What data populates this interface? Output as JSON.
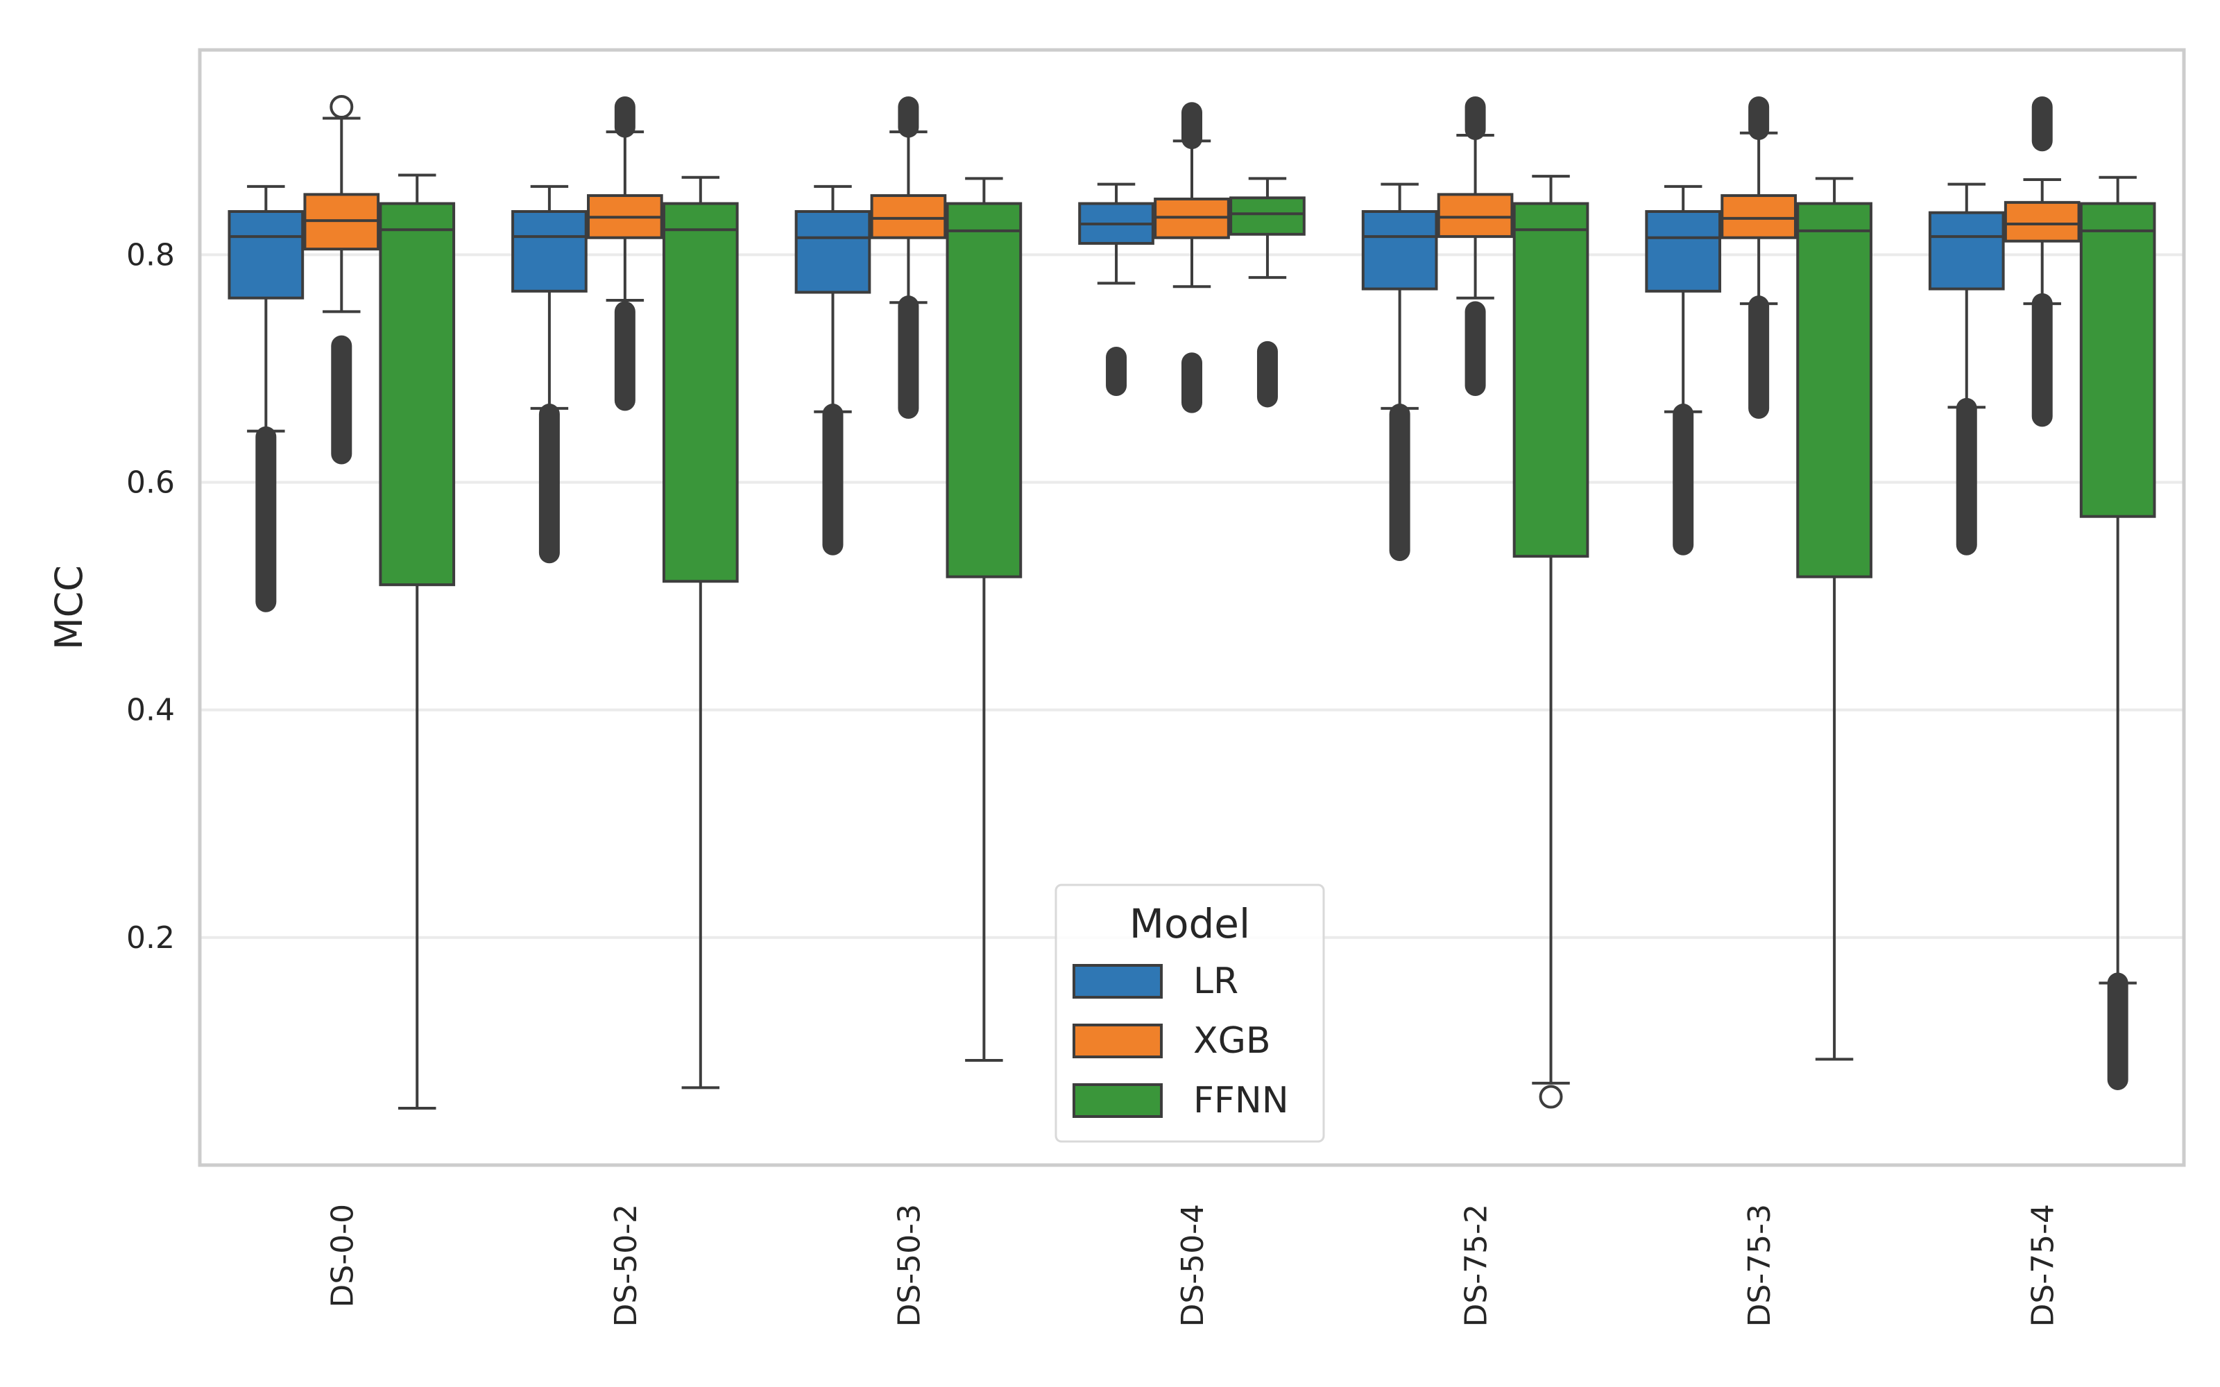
{
  "chart_data": {
    "type": "box",
    "title": "",
    "xlabel": "",
    "ylabel": "MCC",
    "ylim": [
      0.0,
      0.98
    ],
    "yticks": [
      0.2,
      0.4,
      0.6,
      0.8
    ],
    "ytick_labels": [
      "0.2",
      "0.4",
      "0.6",
      "0.8"
    ],
    "grid": true,
    "categories": [
      "DS-0-0",
      "DS-50-2",
      "DS-50-3",
      "DS-50-4",
      "DS-75-2",
      "DS-75-3",
      "DS-75-4"
    ],
    "legend": {
      "title": "Model",
      "position": "lower center"
    },
    "series": [
      {
        "name": "LR",
        "color": "#2f77b4",
        "boxes": [
          {
            "whislo": 0.645,
            "q1": 0.762,
            "med": 0.816,
            "q3": 0.838,
            "whishi": 0.86,
            "fliers_low": [
              0.495,
              0.64
            ],
            "fliers_high": []
          },
          {
            "whislo": 0.665,
            "q1": 0.768,
            "med": 0.816,
            "q3": 0.838,
            "whishi": 0.86,
            "fliers_low": [
              0.538,
              0.66
            ],
            "fliers_high": []
          },
          {
            "whislo": 0.662,
            "q1": 0.767,
            "med": 0.815,
            "q3": 0.838,
            "whishi": 0.86,
            "fliers_low": [
              0.545,
              0.66
            ],
            "fliers_high": []
          },
          {
            "whislo": 0.775,
            "q1": 0.81,
            "med": 0.827,
            "q3": 0.845,
            "whishi": 0.862,
            "fliers_low": [
              0.685,
              0.71
            ],
            "fliers_high": []
          },
          {
            "whislo": 0.665,
            "q1": 0.77,
            "med": 0.816,
            "q3": 0.838,
            "whishi": 0.862,
            "fliers_low": [
              0.54,
              0.66
            ],
            "fliers_high": []
          },
          {
            "whislo": 0.662,
            "q1": 0.768,
            "med": 0.815,
            "q3": 0.838,
            "whishi": 0.86,
            "fliers_low": [
              0.545,
              0.66
            ],
            "fliers_high": []
          },
          {
            "whislo": 0.666,
            "q1": 0.77,
            "med": 0.816,
            "q3": 0.837,
            "whishi": 0.862,
            "fliers_low": [
              0.545,
              0.665
            ],
            "fliers_high": []
          }
        ]
      },
      {
        "name": "XGB",
        "color": "#f0812a",
        "boxes": [
          {
            "whislo": 0.75,
            "q1": 0.805,
            "med": 0.83,
            "q3": 0.853,
            "whishi": 0.92,
            "fliers_low": [
              0.625,
              0.72
            ],
            "fliers_high": [
              0.93
            ]
          },
          {
            "whislo": 0.76,
            "q1": 0.815,
            "med": 0.833,
            "q3": 0.852,
            "whishi": 0.908,
            "fliers_low": [
              0.672,
              0.75
            ],
            "fliers_high": [
              0.912,
              0.93
            ]
          },
          {
            "whislo": 0.758,
            "q1": 0.815,
            "med": 0.832,
            "q3": 0.852,
            "whishi": 0.908,
            "fliers_low": [
              0.665,
              0.755
            ],
            "fliers_high": [
              0.912,
              0.93
            ]
          },
          {
            "whislo": 0.772,
            "q1": 0.815,
            "med": 0.833,
            "q3": 0.849,
            "whishi": 0.9,
            "fliers_low": [
              0.67,
              0.705
            ],
            "fliers_high": [
              0.902,
              0.925
            ]
          },
          {
            "whislo": 0.762,
            "q1": 0.816,
            "med": 0.833,
            "q3": 0.853,
            "whishi": 0.905,
            "fliers_low": [
              0.685,
              0.75
            ],
            "fliers_high": [
              0.91,
              0.93
            ]
          },
          {
            "whislo": 0.757,
            "q1": 0.815,
            "med": 0.832,
            "q3": 0.852,
            "whishi": 0.907,
            "fliers_low": [
              0.665,
              0.755
            ],
            "fliers_high": [
              0.91,
              0.93
            ]
          },
          {
            "whislo": 0.757,
            "q1": 0.812,
            "med": 0.827,
            "q3": 0.846,
            "whishi": 0.866,
            "fliers_low": [
              0.658,
              0.757
            ],
            "fliers_high": [
              0.9,
              0.93
            ]
          }
        ]
      },
      {
        "name": "FFNN",
        "color": "#3a963a",
        "boxes": [
          {
            "whislo": 0.05,
            "q1": 0.51,
            "med": 0.822,
            "q3": 0.845,
            "whishi": 0.87,
            "fliers_low": [],
            "fliers_high": []
          },
          {
            "whislo": 0.068,
            "q1": 0.513,
            "med": 0.822,
            "q3": 0.845,
            "whishi": 0.868,
            "fliers_low": [],
            "fliers_high": []
          },
          {
            "whislo": 0.092,
            "q1": 0.517,
            "med": 0.821,
            "q3": 0.845,
            "whishi": 0.867,
            "fliers_low": [],
            "fliers_high": []
          },
          {
            "whislo": 0.78,
            "q1": 0.818,
            "med": 0.836,
            "q3": 0.85,
            "whishi": 0.867,
            "fliers_low": [
              0.675,
              0.715
            ],
            "fliers_high": []
          },
          {
            "whislo": 0.072,
            "q1": 0.535,
            "med": 0.822,
            "q3": 0.845,
            "whishi": 0.869,
            "fliers_low": [
              0.06
            ],
            "fliers_high": []
          },
          {
            "whislo": 0.093,
            "q1": 0.517,
            "med": 0.821,
            "q3": 0.845,
            "whishi": 0.867,
            "fliers_low": [],
            "fliers_high": []
          },
          {
            "whislo": 0.16,
            "q1": 0.57,
            "med": 0.821,
            "q3": 0.845,
            "whishi": 0.868,
            "fliers_low": [
              0.075,
              0.16
            ],
            "fliers_high": []
          }
        ]
      }
    ]
  }
}
